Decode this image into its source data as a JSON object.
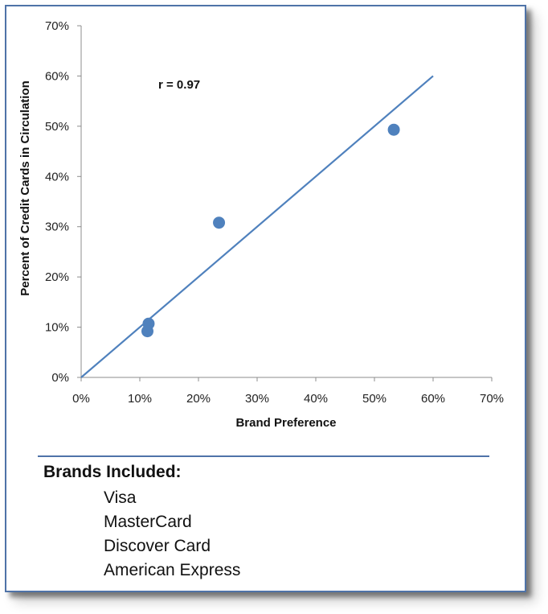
{
  "chart_data": {
    "type": "scatter",
    "xlabel": "Brand Preference",
    "ylabel": "Percent of Credit Cards in Circulation",
    "xlim": [
      0,
      0.7
    ],
    "ylim": [
      0,
      0.7
    ],
    "x_ticks": [
      "0%",
      "10%",
      "20%",
      "30%",
      "40%",
      "50%",
      "60%",
      "70%"
    ],
    "y_ticks": [
      "0%",
      "10%",
      "20%",
      "30%",
      "40%",
      "50%",
      "60%",
      "70%"
    ],
    "points": [
      {
        "x": 0.115,
        "y": 0.107
      },
      {
        "x": 0.113,
        "y": 0.092
      },
      {
        "x": 0.235,
        "y": 0.308
      },
      {
        "x": 0.533,
        "y": 0.493
      }
    ],
    "trendline": {
      "x": [
        0,
        0.6
      ],
      "y": [
        0,
        0.6
      ]
    },
    "annotation": "r = 0.97",
    "grid": false,
    "colors": {
      "marker": "#4f81bd",
      "line": "#4f81bd",
      "axis": "#8c8c8c"
    }
  },
  "brands": {
    "title": "Brands Included:",
    "items": [
      "Visa",
      "MasterCard",
      "Discover Card",
      "American Express"
    ]
  }
}
